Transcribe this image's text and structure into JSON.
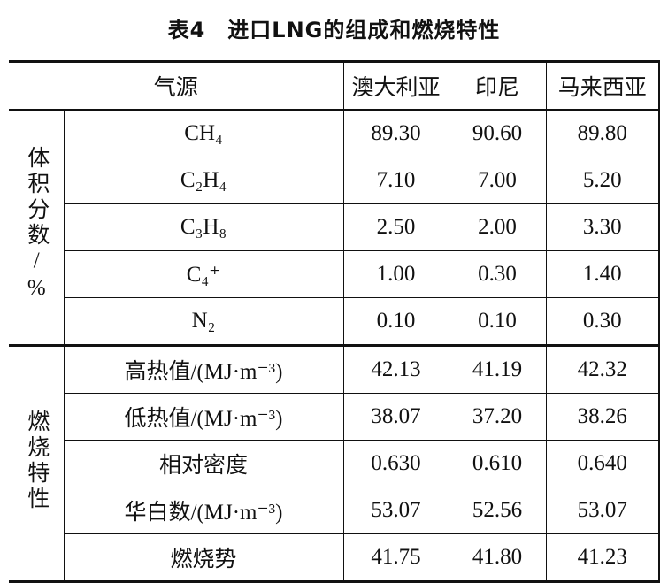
{
  "title": "表4　进口LNG的组成和燃烧特性",
  "table": {
    "header": [
      "气源",
      "澳大利亚",
      "印尼",
      "马来西亚"
    ],
    "groups": [
      {
        "label": "体积分数/%",
        "rows": [
          {
            "label": "CH₄",
            "values": [
              "89.30",
              "90.60",
              "89.80"
            ]
          },
          {
            "label": "C₂H₄",
            "values": [
              "7.10",
              "7.00",
              "5.20"
            ]
          },
          {
            "label": "C₃H₈",
            "values": [
              "2.50",
              "2.00",
              "3.30"
            ]
          },
          {
            "label": "C₄⁺",
            "values": [
              "1.00",
              "0.30",
              "1.40"
            ]
          },
          {
            "label": "N₂",
            "values": [
              "0.10",
              "0.10",
              "0.30"
            ]
          }
        ]
      },
      {
        "label": "燃烧特性",
        "rows": [
          {
            "label": "高热值/(MJ·m⁻³)",
            "values": [
              "42.13",
              "41.19",
              "42.32"
            ]
          },
          {
            "label": "低热值/(MJ·m⁻³)",
            "values": [
              "38.07",
              "37.20",
              "38.26"
            ]
          },
          {
            "label": "相对密度",
            "values": [
              "0.630",
              "0.610",
              "0.640"
            ]
          },
          {
            "label": "华白数/(MJ·m⁻³)",
            "values": [
              "53.07",
              "52.56",
              "53.07"
            ]
          },
          {
            "label": "燃烧势",
            "values": [
              "41.75",
              "41.80",
              "41.23"
            ]
          }
        ]
      }
    ]
  }
}
